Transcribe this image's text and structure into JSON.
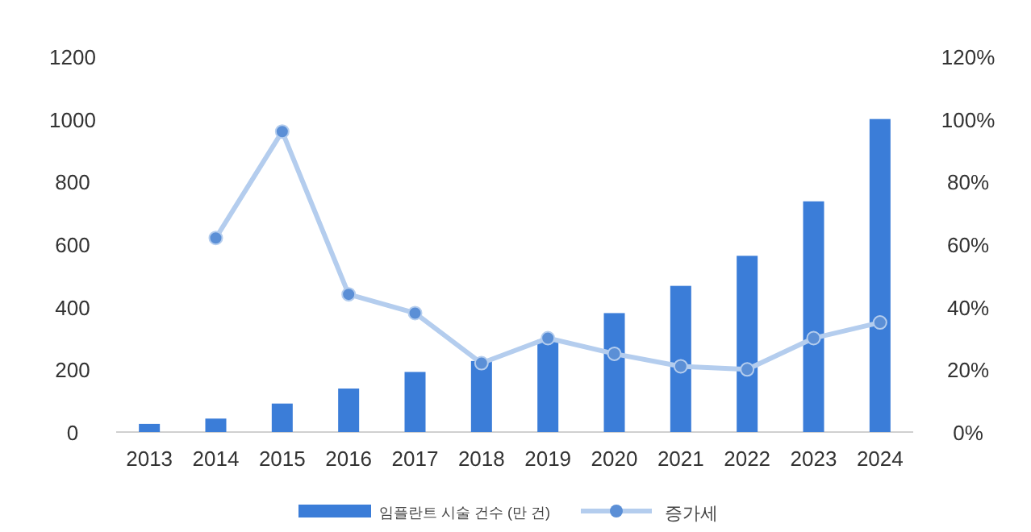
{
  "chart_data": {
    "type": "bar",
    "categories": [
      "2013",
      "2014",
      "2015",
      "2016",
      "2017",
      "2018",
      "2019",
      "2020",
      "2021",
      "2022",
      "2023",
      "2024"
    ],
    "series": [
      {
        "name": "임플란트 시술 건수 (만 건)",
        "color": "#3b7dd8",
        "values": [
          26,
          43,
          91,
          139,
          192,
          227,
          295,
          380,
          467,
          563,
          737,
          1000
        ]
      },
      {
        "name": "증가세",
        "type": "line",
        "axis": "y2",
        "color": "#b4cdee",
        "marker": "circle",
        "values": [
          null,
          62,
          96,
          44,
          38,
          22,
          30,
          25,
          21,
          20,
          30,
          35
        ]
      }
    ],
    "ylim": [
      0,
      1200
    ],
    "yticks": [
      0,
      200,
      400,
      600,
      800,
      1000,
      1200
    ],
    "y2lim": [
      0,
      120
    ],
    "y2ticks": [
      {
        "value": 0,
        "label": "0%"
      },
      {
        "value": 20,
        "label": "20%"
      },
      {
        "value": 40,
        "label": "40%"
      },
      {
        "value": 60,
        "label": "60%"
      },
      {
        "value": 80,
        "label": "80%"
      },
      {
        "value": 100,
        "label": "100%"
      },
      {
        "value": 120,
        "label": "120%"
      }
    ],
    "legend": "bottom",
    "grid": false
  }
}
